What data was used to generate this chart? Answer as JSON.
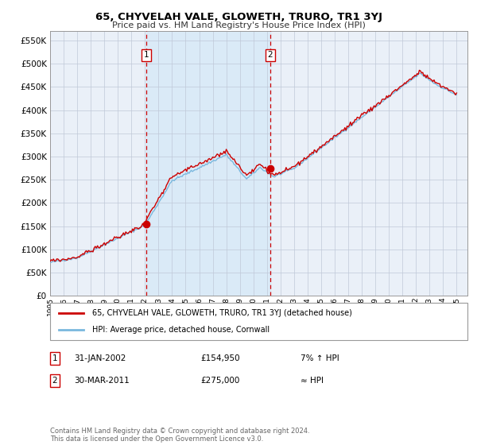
{
  "title": "65, CHYVELAH VALE, GLOWETH, TRURO, TR1 3YJ",
  "subtitle": "Price paid vs. HM Land Registry's House Price Index (HPI)",
  "ylim": [
    0,
    570000
  ],
  "yticks": [
    0,
    50000,
    100000,
    150000,
    200000,
    250000,
    300000,
    350000,
    400000,
    450000,
    500000,
    550000
  ],
  "ytick_labels": [
    "£0",
    "£50K",
    "£100K",
    "£150K",
    "£200K",
    "£250K",
    "£300K",
    "£350K",
    "£400K",
    "£450K",
    "£500K",
    "£550K"
  ],
  "xlim_start": 1995.0,
  "xlim_end": 2025.8,
  "xtick_years": [
    1995,
    1996,
    1997,
    1998,
    1999,
    2000,
    2001,
    2002,
    2003,
    2004,
    2005,
    2006,
    2007,
    2008,
    2009,
    2010,
    2011,
    2012,
    2013,
    2014,
    2015,
    2016,
    2017,
    2018,
    2019,
    2020,
    2021,
    2022,
    2023,
    2024,
    2025
  ],
  "hpi_line_color": "#7ab8de",
  "price_line_color": "#cc0000",
  "marker_color": "#cc0000",
  "vline_color": "#cc0000",
  "shade_color": "#daeaf7",
  "grid_color": "#c0c8d8",
  "bg_color": "#eaf0f8",
  "sale1_x": 2002.08,
  "sale1_y": 154950,
  "sale1_label": "1",
  "sale2_x": 2011.25,
  "sale2_y": 275000,
  "sale2_label": "2",
  "legend_entry1": "65, CHYVELAH VALE, GLOWETH, TRURO, TR1 3YJ (detached house)",
  "legend_entry2": "HPI: Average price, detached house, Cornwall",
  "note1_num": "1",
  "note1_date": "31-JAN-2002",
  "note1_price": "£154,950",
  "note1_hpi": "7% ↑ HPI",
  "note2_num": "2",
  "note2_date": "30-MAR-2011",
  "note2_price": "£275,000",
  "note2_hpi": "≈ HPI",
  "footer": "Contains HM Land Registry data © Crown copyright and database right 2024.\nThis data is licensed under the Open Government Licence v3.0."
}
